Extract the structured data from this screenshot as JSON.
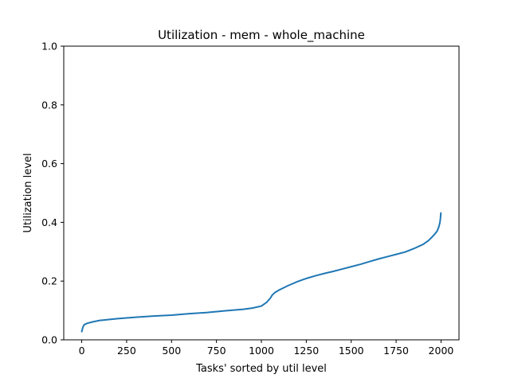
{
  "chart_data": {
    "type": "line",
    "title": "Utilization - mem - whole_machine",
    "xlabel": "Tasks' sorted by util level",
    "ylabel": "Utilization level",
    "xlim": [
      -100,
      2100
    ],
    "ylim": [
      0.0,
      1.0
    ],
    "xticks": [
      0,
      250,
      500,
      750,
      1000,
      1250,
      1500,
      1750,
      2000
    ],
    "xtick_labels": [
      "0",
      "250",
      "500",
      "750",
      "1000",
      "1250",
      "1500",
      "1750",
      "2000"
    ],
    "yticks": [
      0.0,
      0.2,
      0.4,
      0.6,
      0.8,
      1.0
    ],
    "ytick_labels": [
      "0.0",
      "0.2",
      "0.4",
      "0.6",
      "0.8",
      "1.0"
    ],
    "grid": false,
    "series": [
      {
        "color": "#1f77b4",
        "x": [
          0,
          3,
          8,
          15,
          30,
          60,
          100,
          150,
          200,
          300,
          400,
          500,
          600,
          700,
          800,
          900,
          950,
          1000,
          1030,
          1050,
          1060,
          1075,
          1100,
          1150,
          1200,
          1250,
          1300,
          1350,
          1400,
          1450,
          1500,
          1550,
          1600,
          1650,
          1700,
          1750,
          1800,
          1850,
          1900,
          1930,
          1950,
          1965,
          1978,
          1988,
          1994,
          1997,
          1999
        ],
        "y": [
          0.028,
          0.035,
          0.045,
          0.052,
          0.056,
          0.061,
          0.066,
          0.069,
          0.072,
          0.077,
          0.081,
          0.084,
          0.089,
          0.093,
          0.099,
          0.104,
          0.108,
          0.115,
          0.128,
          0.142,
          0.152,
          0.161,
          0.17,
          0.185,
          0.198,
          0.209,
          0.218,
          0.226,
          0.233,
          0.241,
          0.249,
          0.257,
          0.266,
          0.275,
          0.283,
          0.291,
          0.299,
          0.311,
          0.325,
          0.338,
          0.35,
          0.36,
          0.37,
          0.385,
          0.4,
          0.415,
          0.432
        ]
      }
    ]
  }
}
